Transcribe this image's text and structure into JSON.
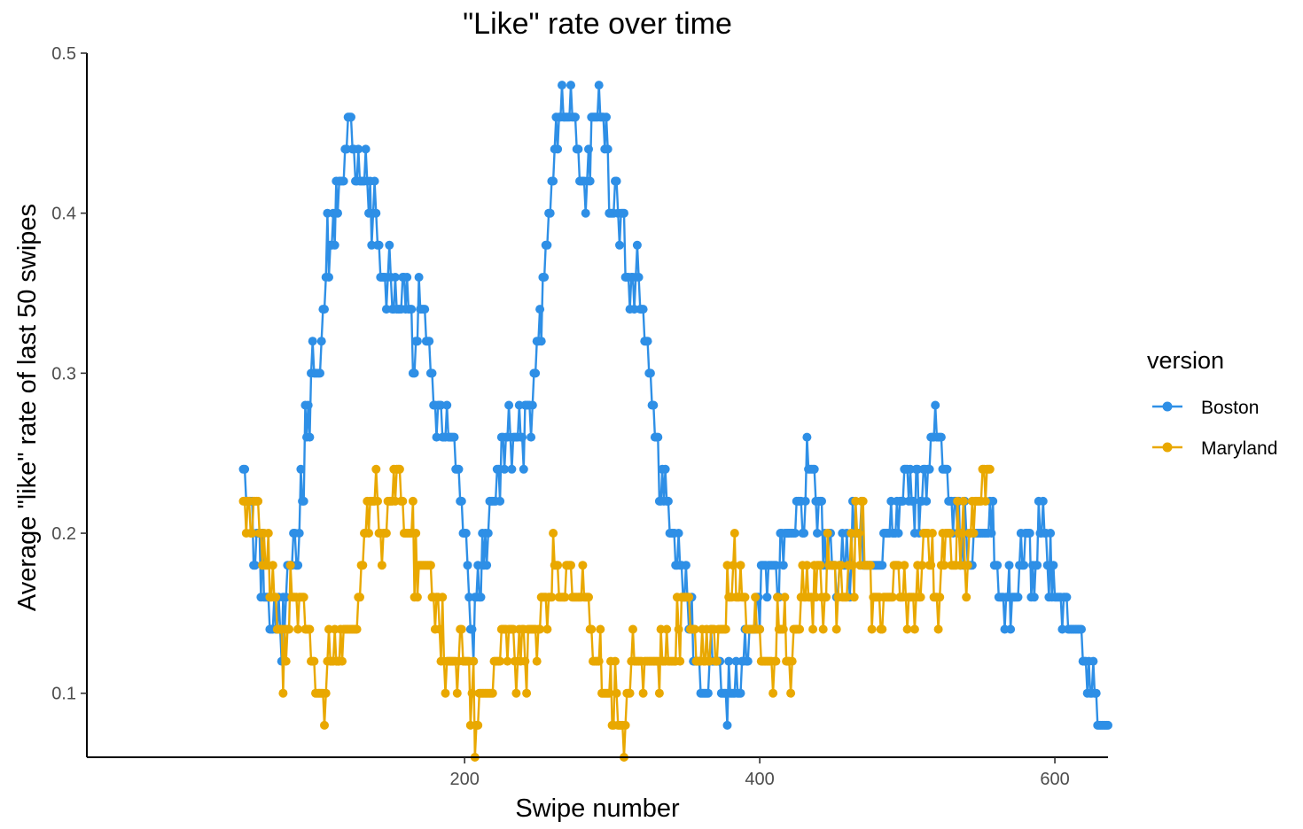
{
  "chart_data": {
    "type": "line",
    "title": "\"Like\" rate over time",
    "xlabel": "Swipe number",
    "ylabel": "Average \"like\" rate of last 50 swipes",
    "xlim": [
      -56,
      636
    ],
    "ylim": [
      0.06,
      0.5
    ],
    "x_ticks": [
      200,
      400,
      600
    ],
    "y_ticks": [
      0.1,
      0.2,
      0.3,
      0.4,
      0.5
    ],
    "x_tick_labels": [
      "200",
      "400",
      "600"
    ],
    "y_tick_labels": [
      "0.1",
      "0.2",
      "0.3",
      "0.4",
      "0.5"
    ],
    "grid": false,
    "legend": {
      "title": "version",
      "position": "right"
    },
    "series": [
      {
        "name": "Boston",
        "color": "#2E8FE6",
        "anchors": [
          [
            50,
            0.24
          ],
          [
            53,
            0.22
          ],
          [
            60,
            0.2
          ],
          [
            65,
            0.16
          ],
          [
            69,
            0.14
          ],
          [
            76,
            0.14
          ],
          [
            80,
            0.18
          ],
          [
            88,
            0.2
          ],
          [
            96,
            0.3
          ],
          [
            102,
            0.3
          ],
          [
            107,
            0.38
          ],
          [
            112,
            0.4
          ],
          [
            118,
            0.42
          ],
          [
            122,
            0.46
          ],
          [
            127,
            0.42
          ],
          [
            131,
            0.42
          ],
          [
            137,
            0.4
          ],
          [
            142,
            0.38
          ],
          [
            148,
            0.36
          ],
          [
            153,
            0.34
          ],
          [
            160,
            0.36
          ],
          [
            166,
            0.32
          ],
          [
            172,
            0.34
          ],
          [
            178,
            0.3
          ],
          [
            183,
            0.26
          ],
          [
            189,
            0.26
          ],
          [
            195,
            0.24
          ],
          [
            200,
            0.2
          ],
          [
            205,
            0.14
          ],
          [
            210,
            0.16
          ],
          [
            218,
            0.2
          ],
          [
            226,
            0.26
          ],
          [
            240,
            0.26
          ],
          [
            248,
            0.3
          ],
          [
            256,
            0.38
          ],
          [
            262,
            0.44
          ],
          [
            268,
            0.46
          ],
          [
            272,
            0.48
          ],
          [
            276,
            0.44
          ],
          [
            282,
            0.4
          ],
          [
            286,
            0.46
          ],
          [
            290,
            0.48
          ],
          [
            294,
            0.46
          ],
          [
            298,
            0.4
          ],
          [
            305,
            0.4
          ],
          [
            310,
            0.36
          ],
          [
            316,
            0.36
          ],
          [
            320,
            0.34
          ],
          [
            326,
            0.3
          ],
          [
            330,
            0.26
          ],
          [
            336,
            0.22
          ],
          [
            340,
            0.2
          ],
          [
            345,
            0.18
          ],
          [
            350,
            0.16
          ],
          [
            356,
            0.12
          ],
          [
            362,
            0.1
          ],
          [
            370,
            0.12
          ],
          [
            376,
            0.1
          ],
          [
            386,
            0.1
          ],
          [
            390,
            0.12
          ],
          [
            396,
            0.14
          ],
          [
            402,
            0.18
          ],
          [
            410,
            0.17
          ],
          [
            416,
            0.2
          ],
          [
            422,
            0.2
          ],
          [
            428,
            0.22
          ],
          [
            435,
            0.24
          ],
          [
            440,
            0.22
          ],
          [
            445,
            0.2
          ],
          [
            452,
            0.18
          ],
          [
            460,
            0.18
          ],
          [
            466,
            0.2
          ],
          [
            472,
            0.18
          ],
          [
            480,
            0.18
          ],
          [
            486,
            0.2
          ],
          [
            492,
            0.2
          ],
          [
            498,
            0.22
          ],
          [
            506,
            0.22
          ],
          [
            514,
            0.24
          ],
          [
            520,
            0.26
          ],
          [
            526,
            0.24
          ],
          [
            530,
            0.22
          ],
          [
            536,
            0.2
          ],
          [
            542,
            0.18
          ],
          [
            548,
            0.2
          ],
          [
            556,
            0.2
          ],
          [
            560,
            0.18
          ],
          [
            566,
            0.16
          ],
          [
            574,
            0.16
          ],
          [
            580,
            0.2
          ],
          [
            586,
            0.18
          ],
          [
            592,
            0.2
          ],
          [
            596,
            0.18
          ],
          [
            600,
            0.16
          ],
          [
            606,
            0.16
          ],
          [
            610,
            0.14
          ],
          [
            616,
            0.14
          ],
          [
            620,
            0.12
          ],
          [
            626,
            0.1
          ],
          [
            630,
            0.08
          ],
          [
            636,
            0.08
          ]
        ]
      },
      {
        "name": "Maryland",
        "color": "#E9A800",
        "anchors": [
          [
            50,
            0.22
          ],
          [
            53,
            0.2
          ],
          [
            58,
            0.22
          ],
          [
            62,
            0.2
          ],
          [
            66,
            0.18
          ],
          [
            70,
            0.16
          ],
          [
            74,
            0.14
          ],
          [
            78,
            0.12
          ],
          [
            83,
            0.16
          ],
          [
            88,
            0.16
          ],
          [
            92,
            0.14
          ],
          [
            96,
            0.12
          ],
          [
            100,
            0.1
          ],
          [
            105,
            0.1
          ],
          [
            110,
            0.12
          ],
          [
            116,
            0.12
          ],
          [
            120,
            0.14
          ],
          [
            126,
            0.14
          ],
          [
            130,
            0.18
          ],
          [
            134,
            0.2
          ],
          [
            138,
            0.22
          ],
          [
            142,
            0.2
          ],
          [
            146,
            0.2
          ],
          [
            150,
            0.22
          ],
          [
            156,
            0.22
          ],
          [
            162,
            0.2
          ],
          [
            168,
            0.18
          ],
          [
            176,
            0.18
          ],
          [
            180,
            0.16
          ],
          [
            184,
            0.14
          ],
          [
            188,
            0.12
          ],
          [
            194,
            0.12
          ],
          [
            200,
            0.12
          ],
          [
            205,
            0.1
          ],
          [
            208,
            0.08
          ],
          [
            212,
            0.1
          ],
          [
            218,
            0.1
          ],
          [
            222,
            0.12
          ],
          [
            228,
            0.14
          ],
          [
            236,
            0.12
          ],
          [
            240,
            0.12
          ],
          [
            246,
            0.14
          ],
          [
            250,
            0.14
          ],
          [
            256,
            0.16
          ],
          [
            262,
            0.18
          ],
          [
            266,
            0.16
          ],
          [
            270,
            0.18
          ],
          [
            276,
            0.16
          ],
          [
            282,
            0.16
          ],
          [
            286,
            0.14
          ],
          [
            290,
            0.12
          ],
          [
            294,
            0.1
          ],
          [
            300,
            0.1
          ],
          [
            306,
            0.08
          ],
          [
            310,
            0.1
          ],
          [
            316,
            0.12
          ],
          [
            320,
            0.12
          ],
          [
            326,
            0.11
          ],
          [
            332,
            0.12
          ],
          [
            340,
            0.12
          ],
          [
            346,
            0.14
          ],
          [
            350,
            0.16
          ],
          [
            354,
            0.14
          ],
          [
            358,
            0.12
          ],
          [
            364,
            0.12
          ],
          [
            370,
            0.14
          ],
          [
            376,
            0.14
          ],
          [
            380,
            0.16
          ],
          [
            384,
            0.18
          ],
          [
            388,
            0.16
          ],
          [
            392,
            0.14
          ],
          [
            398,
            0.14
          ],
          [
            402,
            0.12
          ],
          [
            408,
            0.12
          ],
          [
            414,
            0.14
          ],
          [
            420,
            0.12
          ],
          [
            426,
            0.14
          ],
          [
            430,
            0.16
          ],
          [
            436,
            0.16
          ],
          [
            442,
            0.16
          ],
          [
            448,
            0.18
          ],
          [
            452,
            0.16
          ],
          [
            456,
            0.16
          ],
          [
            462,
            0.18
          ],
          [
            468,
            0.2
          ],
          [
            472,
            0.18
          ],
          [
            476,
            0.16
          ],
          [
            482,
            0.14
          ],
          [
            486,
            0.16
          ],
          [
            492,
            0.18
          ],
          [
            498,
            0.16
          ],
          [
            504,
            0.16
          ],
          [
            508,
            0.18
          ],
          [
            512,
            0.2
          ],
          [
            516,
            0.18
          ],
          [
            520,
            0.16
          ],
          [
            524,
            0.18
          ],
          [
            528,
            0.2
          ],
          [
            532,
            0.18
          ],
          [
            536,
            0.2
          ],
          [
            540,
            0.18
          ],
          [
            544,
            0.2
          ],
          [
            548,
            0.22
          ],
          [
            552,
            0.24
          ],
          [
            556,
            0.24
          ]
        ]
      }
    ]
  }
}
